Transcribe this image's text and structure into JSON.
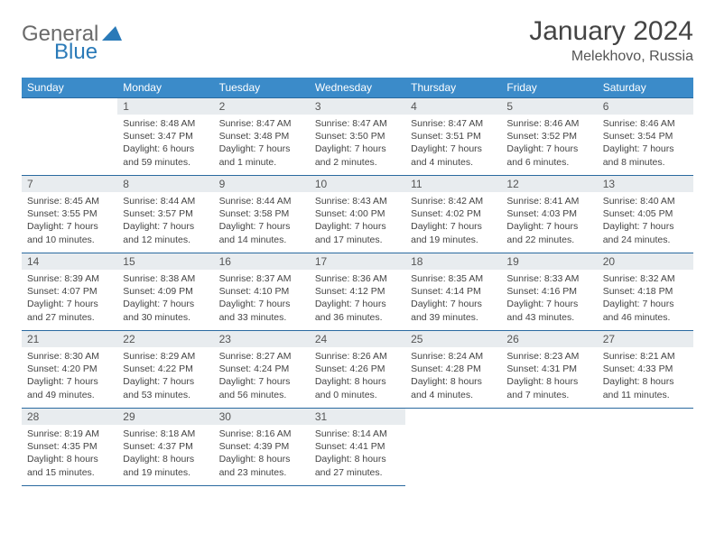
{
  "logo": {
    "general": "General",
    "blue": "Blue"
  },
  "title": "January 2024",
  "location": "Melekhovo, Russia",
  "colors": {
    "header_bg": "#3b8bc9",
    "header_text": "#ffffff",
    "daynum_bg": "#e8ecef",
    "border": "#2a6aa0",
    "logo_blue": "#2a7ab8",
    "logo_gray": "#6a6a6a"
  },
  "weekdays": [
    "Sunday",
    "Monday",
    "Tuesday",
    "Wednesday",
    "Thursday",
    "Friday",
    "Saturday"
  ],
  "weeks": [
    [
      null,
      {
        "n": "1",
        "sr": "Sunrise: 8:48 AM",
        "ss": "Sunset: 3:47 PM",
        "dl": "Daylight: 6 hours and 59 minutes."
      },
      {
        "n": "2",
        "sr": "Sunrise: 8:47 AM",
        "ss": "Sunset: 3:48 PM",
        "dl": "Daylight: 7 hours and 1 minute."
      },
      {
        "n": "3",
        "sr": "Sunrise: 8:47 AM",
        "ss": "Sunset: 3:50 PM",
        "dl": "Daylight: 7 hours and 2 minutes."
      },
      {
        "n": "4",
        "sr": "Sunrise: 8:47 AM",
        "ss": "Sunset: 3:51 PM",
        "dl": "Daylight: 7 hours and 4 minutes."
      },
      {
        "n": "5",
        "sr": "Sunrise: 8:46 AM",
        "ss": "Sunset: 3:52 PM",
        "dl": "Daylight: 7 hours and 6 minutes."
      },
      {
        "n": "6",
        "sr": "Sunrise: 8:46 AM",
        "ss": "Sunset: 3:54 PM",
        "dl": "Daylight: 7 hours and 8 minutes."
      }
    ],
    [
      {
        "n": "7",
        "sr": "Sunrise: 8:45 AM",
        "ss": "Sunset: 3:55 PM",
        "dl": "Daylight: 7 hours and 10 minutes."
      },
      {
        "n": "8",
        "sr": "Sunrise: 8:44 AM",
        "ss": "Sunset: 3:57 PM",
        "dl": "Daylight: 7 hours and 12 minutes."
      },
      {
        "n": "9",
        "sr": "Sunrise: 8:44 AM",
        "ss": "Sunset: 3:58 PM",
        "dl": "Daylight: 7 hours and 14 minutes."
      },
      {
        "n": "10",
        "sr": "Sunrise: 8:43 AM",
        "ss": "Sunset: 4:00 PM",
        "dl": "Daylight: 7 hours and 17 minutes."
      },
      {
        "n": "11",
        "sr": "Sunrise: 8:42 AM",
        "ss": "Sunset: 4:02 PM",
        "dl": "Daylight: 7 hours and 19 minutes."
      },
      {
        "n": "12",
        "sr": "Sunrise: 8:41 AM",
        "ss": "Sunset: 4:03 PM",
        "dl": "Daylight: 7 hours and 22 minutes."
      },
      {
        "n": "13",
        "sr": "Sunrise: 8:40 AM",
        "ss": "Sunset: 4:05 PM",
        "dl": "Daylight: 7 hours and 24 minutes."
      }
    ],
    [
      {
        "n": "14",
        "sr": "Sunrise: 8:39 AM",
        "ss": "Sunset: 4:07 PM",
        "dl": "Daylight: 7 hours and 27 minutes."
      },
      {
        "n": "15",
        "sr": "Sunrise: 8:38 AM",
        "ss": "Sunset: 4:09 PM",
        "dl": "Daylight: 7 hours and 30 minutes."
      },
      {
        "n": "16",
        "sr": "Sunrise: 8:37 AM",
        "ss": "Sunset: 4:10 PM",
        "dl": "Daylight: 7 hours and 33 minutes."
      },
      {
        "n": "17",
        "sr": "Sunrise: 8:36 AM",
        "ss": "Sunset: 4:12 PM",
        "dl": "Daylight: 7 hours and 36 minutes."
      },
      {
        "n": "18",
        "sr": "Sunrise: 8:35 AM",
        "ss": "Sunset: 4:14 PM",
        "dl": "Daylight: 7 hours and 39 minutes."
      },
      {
        "n": "19",
        "sr": "Sunrise: 8:33 AM",
        "ss": "Sunset: 4:16 PM",
        "dl": "Daylight: 7 hours and 43 minutes."
      },
      {
        "n": "20",
        "sr": "Sunrise: 8:32 AM",
        "ss": "Sunset: 4:18 PM",
        "dl": "Daylight: 7 hours and 46 minutes."
      }
    ],
    [
      {
        "n": "21",
        "sr": "Sunrise: 8:30 AM",
        "ss": "Sunset: 4:20 PM",
        "dl": "Daylight: 7 hours and 49 minutes."
      },
      {
        "n": "22",
        "sr": "Sunrise: 8:29 AM",
        "ss": "Sunset: 4:22 PM",
        "dl": "Daylight: 7 hours and 53 minutes."
      },
      {
        "n": "23",
        "sr": "Sunrise: 8:27 AM",
        "ss": "Sunset: 4:24 PM",
        "dl": "Daylight: 7 hours and 56 minutes."
      },
      {
        "n": "24",
        "sr": "Sunrise: 8:26 AM",
        "ss": "Sunset: 4:26 PM",
        "dl": "Daylight: 8 hours and 0 minutes."
      },
      {
        "n": "25",
        "sr": "Sunrise: 8:24 AM",
        "ss": "Sunset: 4:28 PM",
        "dl": "Daylight: 8 hours and 4 minutes."
      },
      {
        "n": "26",
        "sr": "Sunrise: 8:23 AM",
        "ss": "Sunset: 4:31 PM",
        "dl": "Daylight: 8 hours and 7 minutes."
      },
      {
        "n": "27",
        "sr": "Sunrise: 8:21 AM",
        "ss": "Sunset: 4:33 PM",
        "dl": "Daylight: 8 hours and 11 minutes."
      }
    ],
    [
      {
        "n": "28",
        "sr": "Sunrise: 8:19 AM",
        "ss": "Sunset: 4:35 PM",
        "dl": "Daylight: 8 hours and 15 minutes."
      },
      {
        "n": "29",
        "sr": "Sunrise: 8:18 AM",
        "ss": "Sunset: 4:37 PM",
        "dl": "Daylight: 8 hours and 19 minutes."
      },
      {
        "n": "30",
        "sr": "Sunrise: 8:16 AM",
        "ss": "Sunset: 4:39 PM",
        "dl": "Daylight: 8 hours and 23 minutes."
      },
      {
        "n": "31",
        "sr": "Sunrise: 8:14 AM",
        "ss": "Sunset: 4:41 PM",
        "dl": "Daylight: 8 hours and 27 minutes."
      },
      null,
      null,
      null
    ]
  ]
}
